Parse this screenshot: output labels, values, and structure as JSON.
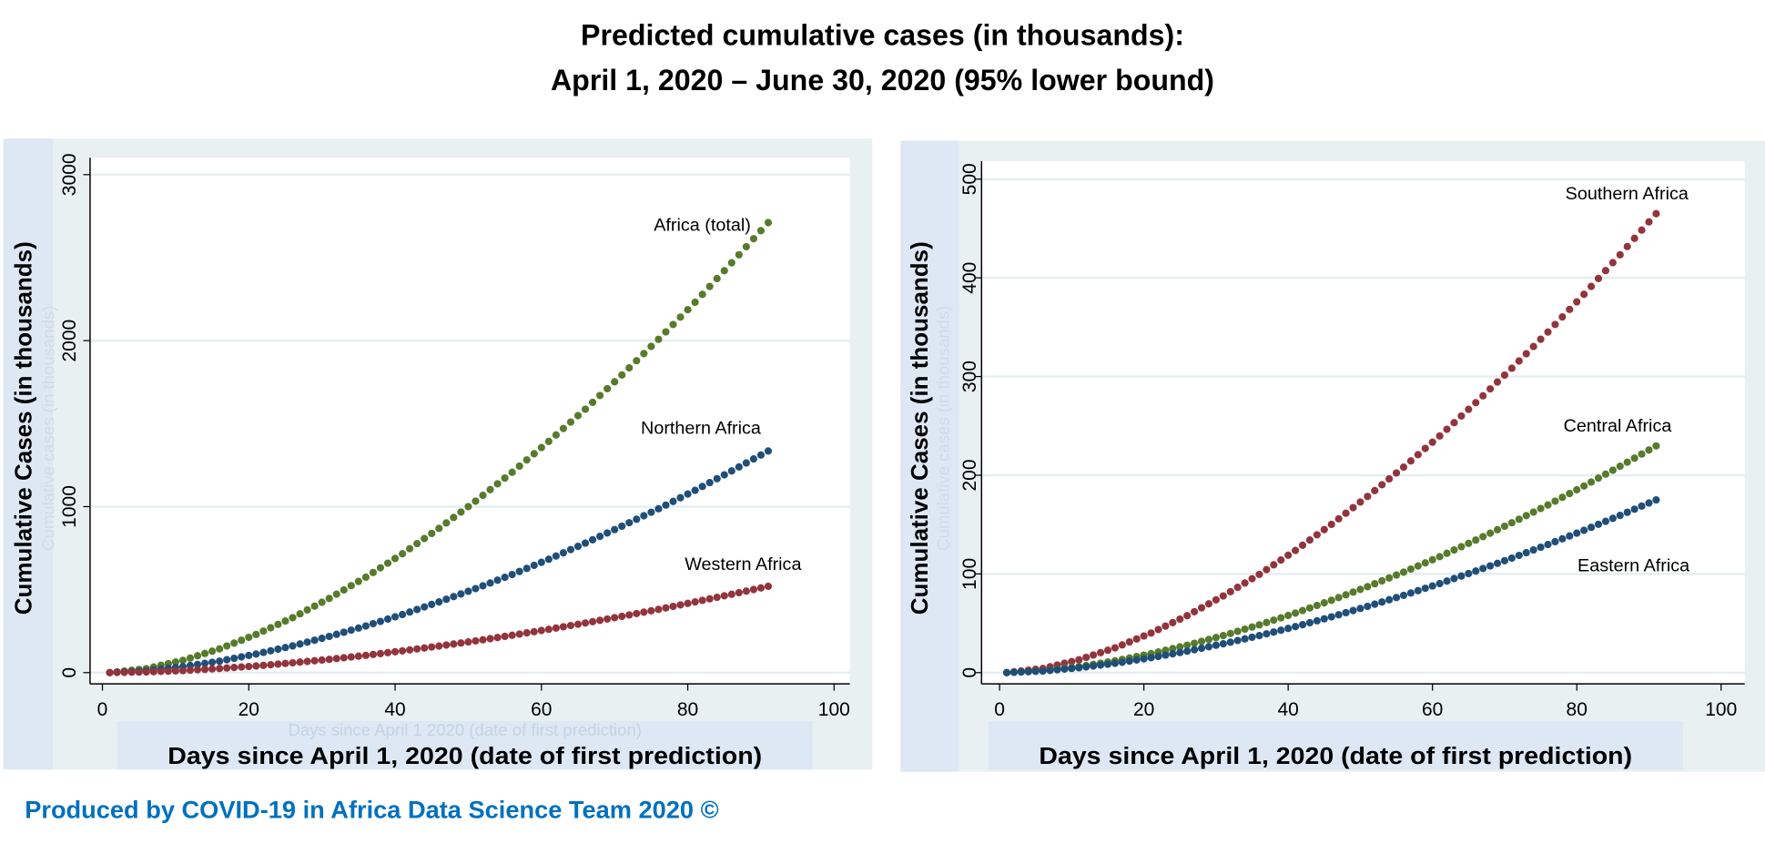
{
  "title_line1": "Predicted cumulative cases (in thousands):",
  "title_line2": "April 1, 2020 – June 30, 2020 (95% lower bound)",
  "footer": "Produced by COVID-19 in Africa Data Science Team 2020 ©",
  "colors": {
    "green": "#567b2b",
    "blue": "#1f4e79",
    "red": "#93343d",
    "footer": "#0070c0",
    "panel_bg": "#e9f0f2",
    "label_bg": "#dde8f4"
  },
  "chart_data": [
    {
      "type": "scatter",
      "xlabel": "Days since April 1, 2020 (date of first prediction)",
      "xlabel_faint": "Days since April 1 2020 (date of first prediction)",
      "ylabel": "Cumulative Cases (in thousands)",
      "ylabel_faint": "Cumulative cases (in thousands)",
      "xlim": [
        0,
        100
      ],
      "ylim": [
        0,
        3000
      ],
      "xticks": [
        "0",
        "20",
        "40",
        "60",
        "80",
        "100"
      ],
      "yticks": [
        "0",
        "1000",
        "2000",
        "3000"
      ],
      "grid": true,
      "x": [
        1,
        6,
        11,
        16,
        21,
        26,
        31,
        36,
        41,
        46,
        51,
        56,
        61,
        66,
        71,
        76,
        81,
        86,
        91
      ],
      "series": [
        {
          "name": "Africa (total)",
          "color": "#567b2b",
          "values": [
            0,
            24,
            74,
            143,
            230,
            331,
            447,
            575,
            716,
            869,
            1033,
            1207,
            1393,
            1587,
            1793,
            2008,
            2231,
            2469,
            2711
          ]
        },
        {
          "name": "Northern Africa",
          "color": "#1f4e79",
          "values": [
            0,
            11,
            36,
            69,
            112,
            161,
            218,
            281,
            350,
            426,
            506,
            591,
            683,
            780,
            882,
            987,
            1098,
            1215,
            1335
          ]
        },
        {
          "name": "Western Africa",
          "color": "#93343d",
          "values": [
            0,
            4,
            12,
            25,
            40,
            59,
            80,
            104,
            131,
            160,
            191,
            225,
            261,
            299,
            339,
            381,
            426,
            472,
            520
          ]
        }
      ]
    },
    {
      "type": "scatter",
      "xlabel": "Days since April 1, 2020 (date of first prediction)",
      "ylabel": "Cumulative Cases (in thousands)",
      "ylabel_faint": "Cumulative cases (in thousands)",
      "xlim": [
        0,
        100
      ],
      "ylim": [
        0,
        500
      ],
      "xticks": [
        "0",
        "20",
        "40",
        "60",
        "80",
        "100"
      ],
      "yticks": [
        "0",
        "100",
        "200",
        "300",
        "400",
        "500"
      ],
      "grid": true,
      "x": [
        1,
        6,
        11,
        16,
        21,
        26,
        31,
        36,
        41,
        46,
        51,
        56,
        61,
        66,
        71,
        76,
        81,
        86,
        91
      ],
      "series": [
        {
          "name": "Southern Africa",
          "color": "#93343d",
          "values": [
            0,
            4.2,
            13.0,
            25.1,
            40.1,
            57.7,
            77.7,
            99.5,
            123.8,
            150.2,
            178.5,
            208.2,
            239.8,
            273.5,
            308.4,
            345.1,
            383.3,
            423.4,
            465
          ]
        },
        {
          "name": "Central Africa",
          "color": "#567b2b",
          "values": [
            0,
            1.9,
            6.1,
            11.9,
            19.2,
            27.8,
            37.5,
            48.4,
            60.3,
            73.3,
            87.1,
            101.8,
            117.5,
            134.3,
            151.8,
            169.9,
            189.1,
            209.1,
            229.7
          ]
        },
        {
          "name": "Eastern Africa",
          "color": "#1f4e79",
          "values": [
            0,
            1.6,
            4.9,
            9.4,
            15.1,
            21.7,
            29.2,
            37.5,
            46.6,
            56.5,
            67.1,
            78.3,
            90.2,
            102.9,
            116.0,
            129.8,
            144.2,
            159.3,
            175
          ]
        }
      ]
    }
  ]
}
